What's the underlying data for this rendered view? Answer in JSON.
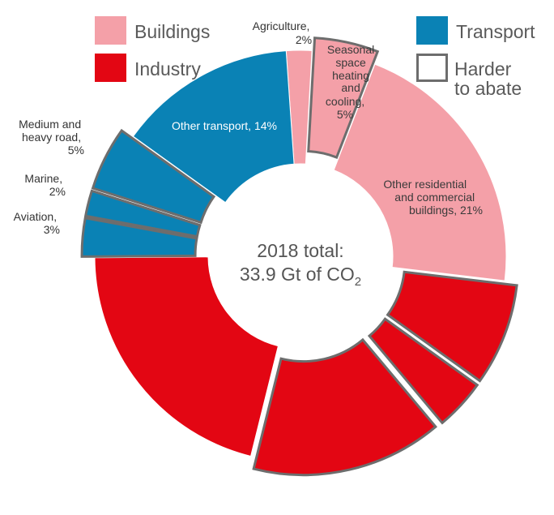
{
  "chart_data": {
    "type": "pie",
    "subtype": "donut",
    "title": "2018 total:",
    "total_label": "33.9 Gt of CO",
    "total_subscript": "2",
    "legend": [
      {
        "name": "Buildings",
        "color": "#f4a0a8"
      },
      {
        "name": "Industry",
        "color": "#e30613"
      },
      {
        "name": "Transport",
        "color": "#0a82b5"
      },
      {
        "name": "Harder to abate",
        "line1": "Harder",
        "line2": "to abate",
        "color": "#ffffff",
        "stroke": "#6d6d6d"
      }
    ],
    "slices": [
      {
        "label": "Agriculture, 2%",
        "line1": "Agriculture,",
        "line2": "2%",
        "category": "Buildings",
        "value": 2,
        "harder_to_abate": false
      },
      {
        "label": "Seasonal space heating and cooling, 5%",
        "lines": [
          "Seasonal",
          "space",
          "heating",
          "and",
          "cooling,",
          "5%"
        ],
        "category": "Buildings",
        "value": 5,
        "harder_to_abate": true
      },
      {
        "label": "Other residential and commercial buildings, 21%",
        "lines": [
          "Other residential",
          "and commercial",
          "buildings, 21%"
        ],
        "category": "Buildings",
        "value": 21,
        "harder_to_abate": false
      },
      {
        "label": "",
        "category": "Industry",
        "value": 8,
        "harder_to_abate": true
      },
      {
        "label": "",
        "category": "Industry",
        "value": 4,
        "harder_to_abate": true
      },
      {
        "label": "",
        "category": "Industry",
        "value": 15,
        "harder_to_abate": true
      },
      {
        "label": "",
        "category": "Industry",
        "value": 21,
        "harder_to_abate": false
      },
      {
        "label": "Aviation, 3%",
        "line1": "Aviation,",
        "line2": "3%",
        "category": "Transport",
        "value": 3,
        "harder_to_abate": true
      },
      {
        "label": "Marine, 2%",
        "line1": "Marine,",
        "line2": "2%",
        "category": "Transport",
        "value": 2,
        "harder_to_abate": true
      },
      {
        "label": "Medium and heavy road, 5%",
        "lines": [
          "Medium and",
          "heavy road,",
          "5%"
        ],
        "category": "Transport",
        "value": 5,
        "harder_to_abate": true
      },
      {
        "label": "Other transport, 14%",
        "category": "Transport",
        "value": 14,
        "harder_to_abate": false
      }
    ]
  }
}
